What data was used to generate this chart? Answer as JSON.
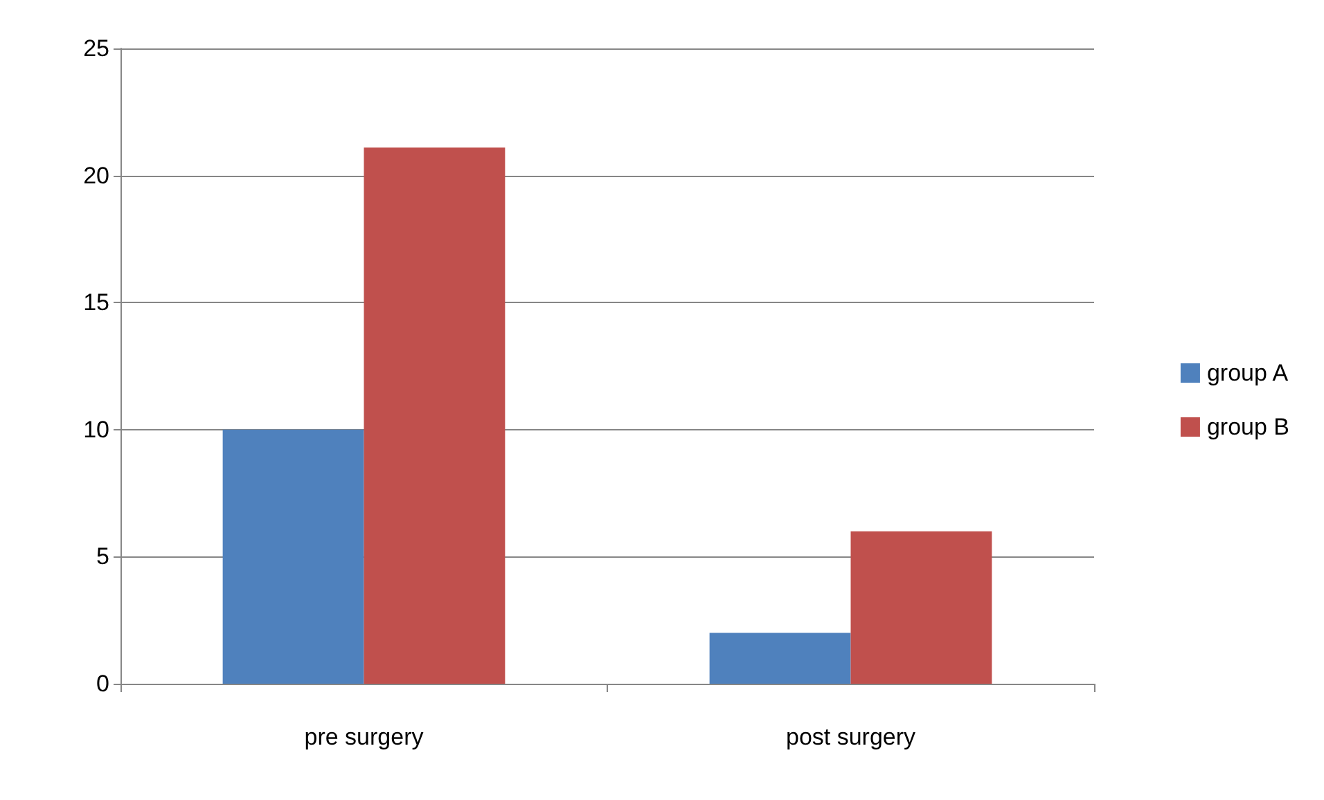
{
  "chart_data": {
    "type": "bar",
    "categories": [
      "pre surgery",
      "post surgery"
    ],
    "series": [
      {
        "name": "group A",
        "color": "#4f81bd",
        "values": [
          10,
          2
        ]
      },
      {
        "name": "group B",
        "color": "#c0504d",
        "values": [
          21.1,
          6
        ]
      }
    ],
    "ylim": [
      0,
      25
    ],
    "yticks": [
      0,
      5,
      10,
      15,
      20,
      25
    ],
    "grid": "y",
    "legend": "right"
  }
}
